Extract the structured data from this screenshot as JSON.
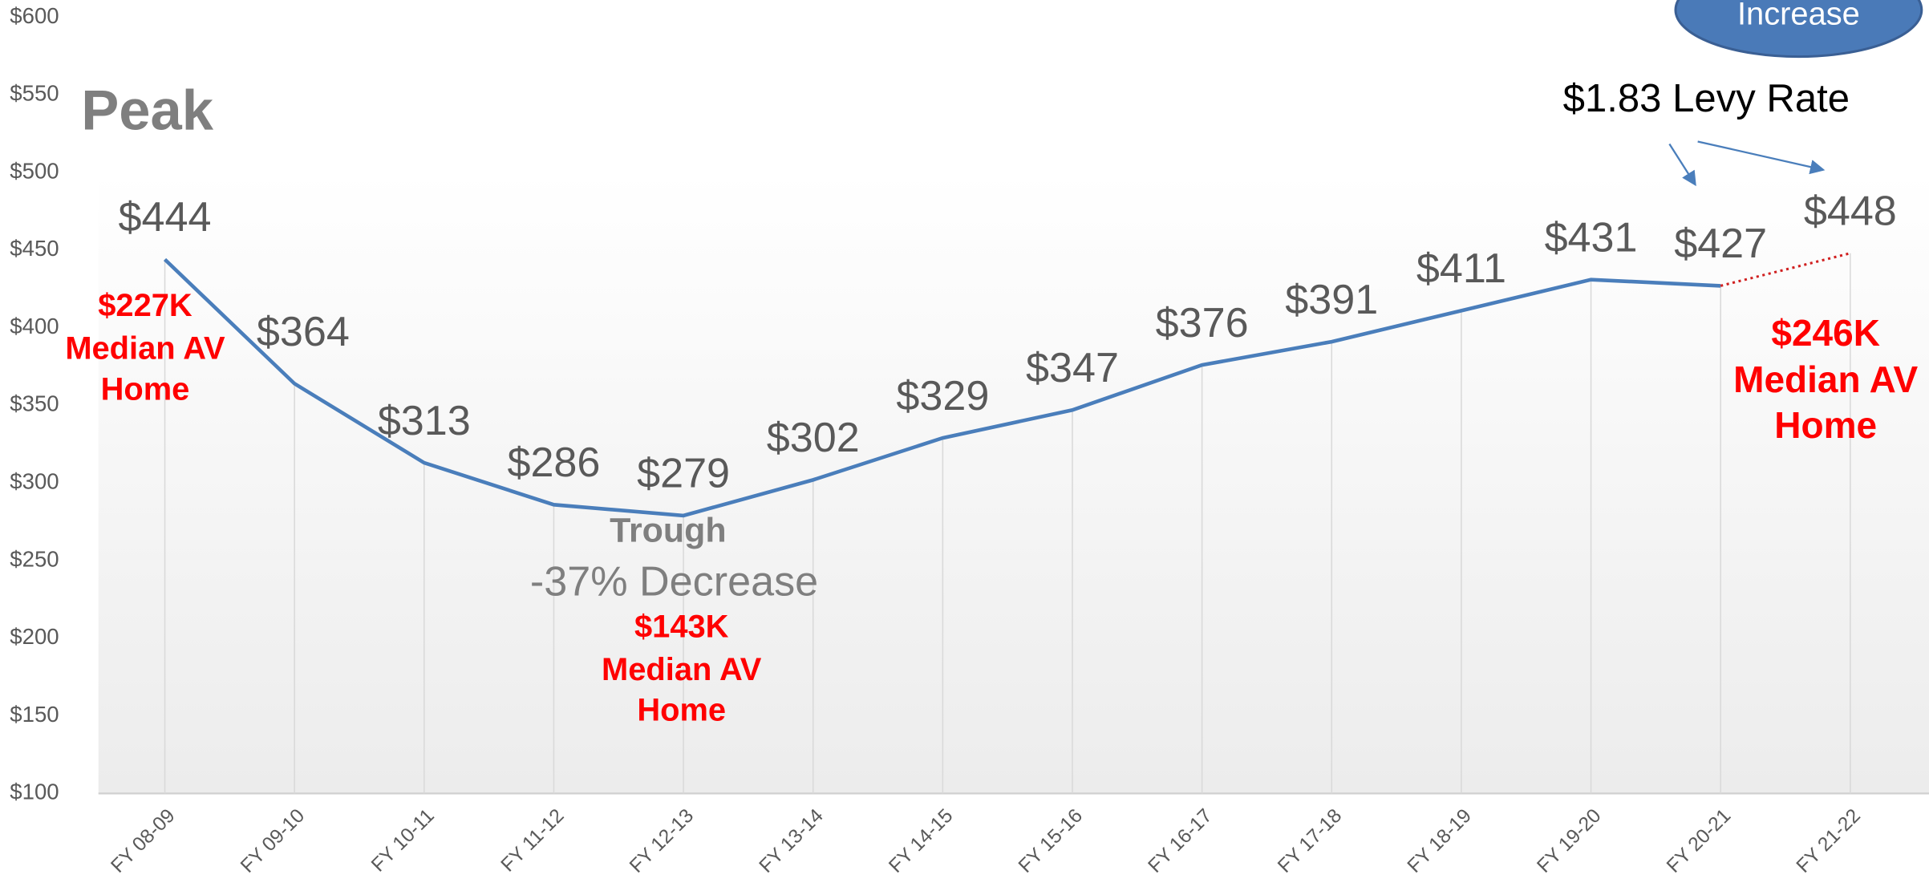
{
  "chart_data": {
    "type": "line",
    "categories": [
      "FY 08-09",
      "FY 09-10",
      "FY 10-11",
      "FY 11-12",
      "FY 12-13",
      "FY 13-14",
      "FY 14-15",
      "FY 15-16",
      "FY 16-17",
      "FY 17-18",
      "FY 18-19",
      "FY 19-20",
      "FY 20-21",
      "FY 21-22"
    ],
    "series": [
      {
        "color": "#4a7ebb",
        "projection_color": "#d02020",
        "values": [
          444,
          364,
          313,
          286,
          279,
          302,
          329,
          347,
          376,
          391,
          411,
          431,
          427,
          448
        ],
        "value_labels": [
          "$444",
          "$364",
          "$313",
          "$286",
          "$279",
          "$302",
          "$329",
          "$347",
          "$376",
          "$391",
          "$411",
          "$431",
          "$427",
          "$448"
        ]
      }
    ],
    "ylim": [
      100,
      600
    ],
    "yticks": [
      {
        "value": 100,
        "label": "$100"
      },
      {
        "value": 150,
        "label": "$150"
      },
      {
        "value": 200,
        "label": "$200"
      },
      {
        "value": 250,
        "label": "$250"
      },
      {
        "value": 300,
        "label": "$300"
      },
      {
        "value": 350,
        "label": "$350"
      },
      {
        "value": 400,
        "label": "$400"
      },
      {
        "value": 450,
        "label": "$450"
      },
      {
        "value": 500,
        "label": "$500"
      },
      {
        "value": 550,
        "label": "$550"
      },
      {
        "value": 600,
        "label": "$600"
      }
    ],
    "vertical_grid": true,
    "annotations": [
      "Peak",
      "$227K",
      "Median AV",
      "Home",
      "Trough",
      "-37% Decrease",
      "$143K",
      "Median AV",
      "Home",
      "$246K",
      "Median AV",
      "Home",
      "$1.83 Levy Rate",
      "Increase"
    ]
  }
}
